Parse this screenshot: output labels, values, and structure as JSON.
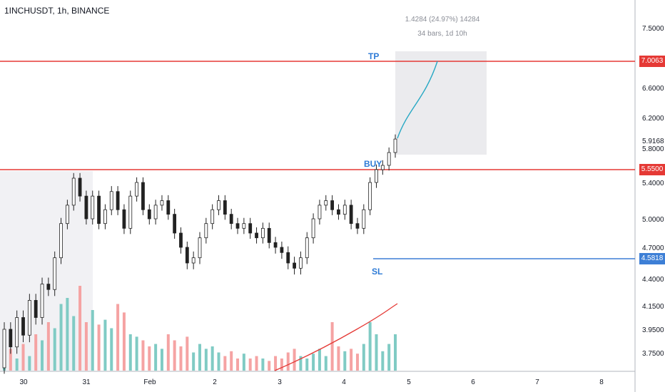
{
  "symbol": "1INCHUSDT, 1h, BINANCE",
  "measure": {
    "line1": "1.4284 (24.97%) 14284",
    "line2": "34 bars, 1d 10h"
  },
  "labels": {
    "tp": "TP",
    "buy": "BUY",
    "sl": "SL"
  },
  "levels": {
    "tp": {
      "label": "7.0063",
      "color": "#e53935"
    },
    "buy": {
      "label": "5.5500",
      "color": "#e53935"
    },
    "sl": {
      "label": "4.5818",
      "color": "#3d7fd6"
    },
    "last": {
      "label": "5.9168"
    }
  },
  "colors": {
    "up": "#26a69a",
    "down": "#ef5350",
    "vol_up": "#80cbc4",
    "vol_down": "#f5a3a3",
    "ma": "#e53935",
    "projection": "#26a8c4",
    "tag_blue": "#2e7bd6"
  },
  "chart_data": {
    "type": "candlestick",
    "y_ticks": [
      "7.5000",
      "6.6000",
      "6.2000",
      "5.8000",
      "5.4000",
      "5.0000",
      "4.7000",
      "4.4000",
      "4.1500",
      "3.9500",
      "3.7500"
    ],
    "x_ticks": [
      "30",
      "31",
      "Feb",
      "2",
      "3",
      "4",
      "5",
      "6",
      "7",
      "8"
    ],
    "series": [
      {
        "name": "price",
        "points": [
          [
            3.6,
            3.95
          ],
          [
            3.95,
            3.8
          ],
          [
            3.8,
            4.05
          ],
          [
            4.05,
            3.9
          ],
          [
            3.9,
            4.2
          ],
          [
            4.2,
            4.05
          ],
          [
            4.05,
            4.35
          ],
          [
            4.35,
            4.3
          ],
          [
            4.3,
            4.6
          ],
          [
            4.6,
            4.95
          ],
          [
            4.95,
            5.15
          ],
          [
            5.15,
            5.45
          ],
          [
            5.45,
            5.25
          ],
          [
            5.25,
            5.0
          ],
          [
            5.0,
            5.25
          ],
          [
            5.25,
            4.95
          ],
          [
            4.95,
            5.1
          ],
          [
            5.1,
            5.3
          ],
          [
            5.3,
            5.1
          ],
          [
            5.1,
            4.9
          ],
          [
            4.9,
            5.25
          ],
          [
            5.25,
            5.4
          ],
          [
            5.4,
            5.1
          ],
          [
            5.1,
            5.0
          ],
          [
            5.0,
            5.15
          ],
          [
            5.15,
            5.2
          ],
          [
            5.2,
            5.05
          ],
          [
            5.05,
            4.85
          ],
          [
            4.85,
            4.7
          ],
          [
            4.7,
            4.55
          ],
          [
            4.55,
            4.6
          ],
          [
            4.6,
            4.8
          ],
          [
            4.8,
            4.95
          ],
          [
            4.95,
            5.1
          ],
          [
            5.1,
            5.2
          ],
          [
            5.2,
            5.05
          ],
          [
            5.05,
            4.95
          ],
          [
            4.95,
            4.9
          ],
          [
            4.9,
            4.95
          ],
          [
            4.95,
            4.85
          ],
          [
            4.85,
            4.8
          ],
          [
            4.8,
            4.9
          ],
          [
            4.9,
            4.75
          ],
          [
            4.75,
            4.7
          ],
          [
            4.7,
            4.65
          ],
          [
            4.65,
            4.55
          ],
          [
            4.55,
            4.5
          ],
          [
            4.5,
            4.6
          ],
          [
            4.6,
            4.8
          ],
          [
            4.8,
            5.0
          ],
          [
            5.0,
            5.15
          ],
          [
            5.15,
            5.2
          ],
          [
            5.2,
            5.1
          ],
          [
            5.1,
            5.05
          ],
          [
            5.05,
            5.15
          ],
          [
            5.15,
            4.95
          ],
          [
            4.95,
            4.9
          ],
          [
            4.9,
            5.1
          ],
          [
            5.1,
            5.4
          ],
          [
            5.4,
            5.55
          ],
          [
            5.55,
            5.6
          ],
          [
            5.6,
            5.75
          ],
          [
            5.75,
            5.92
          ]
        ]
      },
      {
        "name": "volume",
        "values": [
          0.05,
          0.18,
          0.1,
          0.22,
          0.12,
          0.3,
          0.25,
          0.4,
          0.35,
          0.55,
          0.6,
          0.45,
          0.7,
          0.4,
          0.5,
          0.38,
          0.42,
          0.35,
          0.55,
          0.48,
          0.3,
          0.28,
          0.25,
          0.2,
          0.22,
          0.18,
          0.3,
          0.25,
          0.2,
          0.28,
          0.15,
          0.22,
          0.18,
          0.2,
          0.15,
          0.12,
          0.16,
          0.1,
          0.14,
          0.1,
          0.12,
          0.1,
          0.08,
          0.12,
          0.1,
          0.15,
          0.18,
          0.12,
          0.1,
          0.14,
          0.18,
          0.12,
          0.4,
          0.2,
          0.16,
          0.18,
          0.14,
          0.22,
          0.4,
          0.3,
          0.16,
          0.22,
          0.3
        ]
      }
    ]
  }
}
